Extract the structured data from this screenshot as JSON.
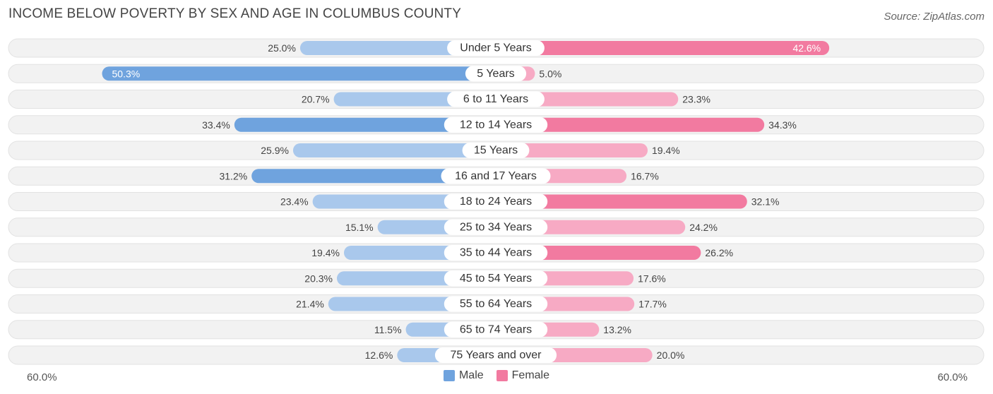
{
  "header": {
    "title": "INCOME BELOW POVERTY BY SEX AND AGE IN COLUMBUS COUNTY",
    "source": "Source: ZipAtlas.com"
  },
  "axis": {
    "left_label": "60.0%",
    "right_label": "60.0%"
  },
  "legend": {
    "male_label": "Male",
    "female_label": "Female"
  },
  "colors": {
    "male": "#6fa3de",
    "male_light": "#a9c8ec",
    "female": "#f27aa0",
    "female_light": "#f7aac4",
    "track": "#f1f1f1"
  },
  "chart_data": {
    "type": "bar",
    "orientation": "diverging-horizontal",
    "title": "INCOME BELOW POVERTY BY SEX AND AGE IN COLUMBUS COUNTY",
    "xlim": [
      -60,
      60
    ],
    "categories": [
      "Under 5 Years",
      "5 Years",
      "6 to 11 Years",
      "12 to 14 Years",
      "15 Years",
      "16 and 17 Years",
      "18 to 24 Years",
      "25 to 34 Years",
      "35 to 44 Years",
      "45 to 54 Years",
      "55 to 64 Years",
      "65 to 74 Years",
      "75 Years and over"
    ],
    "series": [
      {
        "name": "Male",
        "values": [
          25.0,
          50.3,
          20.7,
          33.4,
          25.9,
          31.2,
          23.4,
          15.1,
          19.4,
          20.3,
          21.4,
          11.5,
          12.6
        ]
      },
      {
        "name": "Female",
        "values": [
          42.6,
          5.0,
          23.3,
          34.3,
          19.4,
          16.7,
          32.1,
          24.2,
          26.2,
          17.6,
          17.7,
          13.2,
          20.0
        ]
      }
    ],
    "value_labels_male": [
      "25.0%",
      "50.3%",
      "20.7%",
      "33.4%",
      "25.9%",
      "31.2%",
      "23.4%",
      "15.1%",
      "19.4%",
      "20.3%",
      "21.4%",
      "11.5%",
      "12.6%"
    ],
    "value_labels_female": [
      "42.6%",
      "5.0%",
      "23.3%",
      "34.3%",
      "19.4%",
      "16.7%",
      "32.1%",
      "24.2%",
      "26.2%",
      "17.6%",
      "17.7%",
      "13.2%",
      "20.0%"
    ],
    "legend_position": "bottom-center"
  }
}
